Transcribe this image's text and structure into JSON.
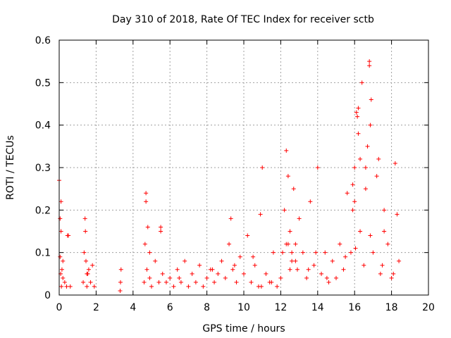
{
  "chart_data": {
    "type": "scatter",
    "title": "Day 310 of 2018, Rate Of TEC Index for receiver sctb",
    "xlabel": "GPS time / hours",
    "ylabel": "ROTI / TECUs",
    "xlim": [
      0,
      20
    ],
    "ylim": [
      0,
      0.6
    ],
    "xticks": [
      0,
      2,
      4,
      6,
      8,
      10,
      12,
      14,
      16,
      18,
      20
    ],
    "yticks": [
      0,
      0.1,
      0.2,
      0.3,
      0.4,
      0.5,
      0.6
    ],
    "grid": true,
    "marker": "+",
    "series_color": "#ff0000",
    "series": [
      {
        "name": "ROTI",
        "x": [
          0.0,
          0.05,
          0.1,
          0.08,
          0.12,
          0.05,
          0.15,
          0.2,
          0.3,
          0.4,
          0.5,
          0.6,
          0.1,
          0.45,
          1.3,
          1.4,
          1.45,
          1.5,
          1.6,
          1.7,
          1.8,
          1.9,
          1.35,
          1.42,
          1.5,
          3.3,
          3.35,
          3.32,
          4.6,
          4.65,
          4.7,
          4.75,
          4.8,
          4.9,
          5.0,
          5.2,
          5.4,
          5.5,
          5.6,
          5.8,
          6.0,
          6.2,
          6.4,
          6.6,
          6.8,
          7.0,
          7.2,
          7.4,
          7.6,
          7.8,
          8.0,
          8.2,
          8.4,
          8.6,
          8.8,
          9.0,
          9.2,
          9.3,
          9.4,
          9.6,
          9.8,
          10.0,
          10.2,
          10.4,
          10.6,
          10.8,
          10.9,
          11.0,
          11.2,
          11.4,
          11.6,
          11.8,
          12.0,
          12.1,
          12.2,
          12.3,
          12.4,
          12.5,
          12.6,
          12.7,
          12.8,
          12.9,
          13.0,
          13.2,
          13.4,
          13.6,
          13.8,
          14.0,
          14.2,
          14.4,
          14.6,
          14.8,
          15.0,
          15.2,
          15.4,
          15.6,
          15.8,
          15.9,
          16.0,
          16.1,
          16.2,
          16.3,
          16.4,
          16.5,
          16.6,
          16.7,
          16.8,
          16.9,
          17.0,
          17.2,
          17.4,
          17.6,
          17.8,
          18.0,
          18.2,
          18.4,
          0.2,
          1.55,
          4.9,
          6.5,
          8.3,
          9.5,
          10.5,
          11.5,
          12.3,
          12.8,
          13.5,
          14.5,
          15.5,
          16.05,
          16.85,
          17.5,
          18.1,
          16.8,
          16.85,
          16.15,
          16.2,
          16.0,
          16.3,
          15.9,
          17.3,
          12.4,
          12.5,
          10.95,
          13.9,
          18.3,
          4.7,
          5.5,
          17.6,
          12.6,
          16.6
        ],
        "y": [
          0.27,
          0.18,
          0.15,
          0.05,
          0.02,
          0.09,
          0.06,
          0.04,
          0.03,
          0.02,
          0.14,
          0.02,
          0.22,
          0.14,
          0.03,
          0.18,
          0.08,
          0.02,
          0.06,
          0.03,
          0.07,
          0.02,
          0.1,
          0.15,
          0.05,
          0.01,
          0.06,
          0.03,
          0.03,
          0.12,
          0.22,
          0.06,
          0.16,
          0.04,
          0.02,
          0.08,
          0.03,
          0.15,
          0.05,
          0.03,
          0.04,
          0.02,
          0.06,
          0.03,
          0.08,
          0.02,
          0.05,
          0.03,
          0.07,
          0.02,
          0.04,
          0.06,
          0.03,
          0.05,
          0.08,
          0.04,
          0.12,
          0.18,
          0.06,
          0.03,
          0.09,
          0.05,
          0.14,
          0.03,
          0.07,
          0.02,
          0.19,
          0.3,
          0.05,
          0.03,
          0.1,
          0.02,
          0.04,
          0.1,
          0.2,
          0.34,
          0.28,
          0.15,
          0.08,
          0.25,
          0.12,
          0.06,
          0.18,
          0.1,
          0.04,
          0.22,
          0.07,
          0.3,
          0.05,
          0.1,
          0.03,
          0.08,
          0.04,
          0.12,
          0.06,
          0.24,
          0.1,
          0.2,
          0.3,
          0.43,
          0.38,
          0.15,
          0.5,
          0.07,
          0.25,
          0.35,
          0.55,
          0.46,
          0.1,
          0.28,
          0.05,
          0.2,
          0.12,
          0.04,
          0.31,
          0.08,
          0.08,
          0.05,
          0.1,
          0.04,
          0.06,
          0.07,
          0.09,
          0.03,
          0.12,
          0.08,
          0.06,
          0.04,
          0.09,
          0.11,
          0.14,
          0.07,
          0.05,
          0.54,
          0.4,
          0.42,
          0.44,
          0.22,
          0.32,
          0.26,
          0.32,
          0.12,
          0.06,
          0.02,
          0.1,
          0.19,
          0.24,
          0.16,
          0.15,
          0.1,
          0.3
        ]
      }
    ]
  }
}
